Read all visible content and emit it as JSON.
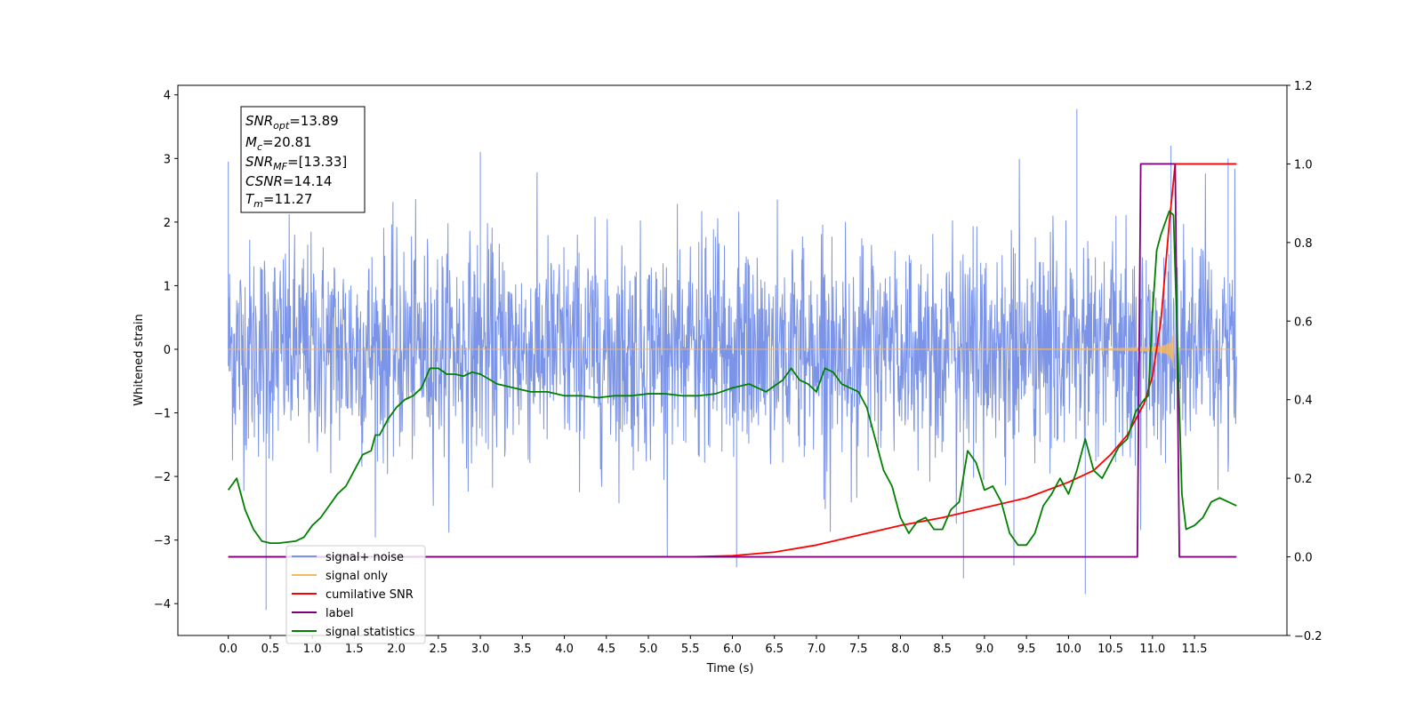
{
  "chart_data": {
    "type": "line",
    "xlabel": "Time (s)",
    "ylabel": "Whitened strain",
    "xlim": [
      -0.6,
      12.6
    ],
    "ylim": [
      -4.5,
      4.15
    ],
    "y2lim": [
      -0.2,
      1.2
    ],
    "xticks": [
      "0.0",
      "0.5",
      "1.0",
      "1.5",
      "2.0",
      "2.5",
      "3.0",
      "3.5",
      "4.0",
      "4.5",
      "5.0",
      "5.5",
      "6.0",
      "6.5",
      "7.0",
      "7.5",
      "8.0",
      "8.5",
      "9.0",
      "9.5",
      "10.0",
      "10.5",
      "11.0",
      "11.5"
    ],
    "yticks": [
      "4",
      "3",
      "2",
      "1",
      "0",
      "−1",
      "−2",
      "−3",
      "−4"
    ],
    "y2ticks": [
      "1.2",
      "1.0",
      "0.8",
      "0.6",
      "0.4",
      "0.2",
      "0.0",
      "−0.2"
    ],
    "grid": false,
    "legend_position": "lower-left",
    "colors": {
      "signal_noise": "#7b94e8",
      "signal_only": "#f5b860",
      "cumulative_snr": "#ff0000",
      "label": "#800080",
      "signal_statistics": "#008000"
    },
    "annotation": {
      "snr_opt": {
        "name": "SNR",
        "sub": "opt",
        "value": "=13.89"
      },
      "mc": {
        "name": "M",
        "sub": "c",
        "value": "=20.81"
      },
      "snr_mf": {
        "name": "SNR",
        "sub": "MF",
        "value": "=[13.33]"
      },
      "csnr": {
        "name": "CSNR",
        "value": "=14.14"
      },
      "tm": {
        "name": "T",
        "sub": "m",
        "value": "=11.27"
      }
    },
    "series": [
      {
        "name": "signal+ noise",
        "axis": "left",
        "style": "dense noisy trace, typical amplitude about ±1.5, extremes near +3.8 and −4.1",
        "t_range": [
          0.0,
          12.0
        ]
      },
      {
        "name": "signal only",
        "axis": "left",
        "style": "chirp, amplitude grows to about 1.1 near t=11.1 then stops at t=11.27",
        "t_range": [
          0.0,
          12.0
        ]
      },
      {
        "name": "cumilative SNR",
        "axis": "right",
        "x": [
          0.0,
          5.5,
          6.0,
          6.5,
          7.0,
          7.5,
          8.0,
          8.5,
          9.0,
          9.5,
          10.0,
          10.3,
          10.5,
          10.7,
          10.9,
          11.0,
          11.1,
          11.2,
          11.27,
          12.0
        ],
        "y": [
          0.0,
          0.0,
          0.003,
          0.012,
          0.03,
          0.055,
          0.08,
          0.1,
          0.125,
          0.15,
          0.19,
          0.22,
          0.26,
          0.31,
          0.39,
          0.46,
          0.6,
          0.85,
          1.0,
          1.0
        ]
      },
      {
        "name": "label",
        "axis": "right",
        "x": [
          0.0,
          10.82,
          10.86,
          11.27,
          11.32,
          12.0
        ],
        "y": [
          0.0,
          0.0,
          1.0,
          1.0,
          0.0,
          0.0
        ]
      },
      {
        "name": "signal statistics",
        "axis": "right",
        "x": [
          0.0,
          0.1,
          0.2,
          0.3,
          0.4,
          0.5,
          0.6,
          0.8,
          0.9,
          1.0,
          1.1,
          1.2,
          1.3,
          1.4,
          1.5,
          1.6,
          1.7,
          1.75,
          1.8,
          1.9,
          2.0,
          2.1,
          2.2,
          2.3,
          2.4,
          2.5,
          2.6,
          2.7,
          2.8,
          2.9,
          3.0,
          3.2,
          3.4,
          3.6,
          3.8,
          4.0,
          4.2,
          4.4,
          4.6,
          4.8,
          5.0,
          5.2,
          5.4,
          5.6,
          5.8,
          6.0,
          6.2,
          6.4,
          6.6,
          6.7,
          6.8,
          6.9,
          7.0,
          7.1,
          7.2,
          7.3,
          7.4,
          7.5,
          7.6,
          7.7,
          7.8,
          7.9,
          8.0,
          8.1,
          8.2,
          8.3,
          8.4,
          8.5,
          8.6,
          8.7,
          8.8,
          8.9,
          9.0,
          9.1,
          9.2,
          9.3,
          9.4,
          9.5,
          9.6,
          9.7,
          9.8,
          9.9,
          10.0,
          10.1,
          10.2,
          10.3,
          10.4,
          10.5,
          10.6,
          10.7,
          10.8,
          10.9,
          10.95,
          11.0,
          11.05,
          11.1,
          11.2,
          11.25,
          11.3,
          11.35,
          11.4,
          11.5,
          11.6,
          11.7,
          11.8,
          11.9,
          12.0
        ],
        "y": [
          0.17,
          0.2,
          0.12,
          0.07,
          0.04,
          0.035,
          0.035,
          0.04,
          0.05,
          0.08,
          0.1,
          0.13,
          0.16,
          0.18,
          0.22,
          0.26,
          0.27,
          0.31,
          0.31,
          0.35,
          0.38,
          0.4,
          0.41,
          0.43,
          0.48,
          0.48,
          0.465,
          0.465,
          0.46,
          0.47,
          0.465,
          0.44,
          0.43,
          0.42,
          0.42,
          0.41,
          0.41,
          0.405,
          0.41,
          0.41,
          0.415,
          0.415,
          0.41,
          0.41,
          0.415,
          0.43,
          0.44,
          0.42,
          0.45,
          0.48,
          0.45,
          0.44,
          0.42,
          0.48,
          0.47,
          0.44,
          0.43,
          0.42,
          0.38,
          0.3,
          0.22,
          0.18,
          0.1,
          0.06,
          0.09,
          0.1,
          0.07,
          0.07,
          0.12,
          0.14,
          0.27,
          0.24,
          0.17,
          0.18,
          0.14,
          0.06,
          0.03,
          0.03,
          0.06,
          0.13,
          0.16,
          0.2,
          0.16,
          0.22,
          0.3,
          0.22,
          0.2,
          0.24,
          0.28,
          0.3,
          0.37,
          0.4,
          0.41,
          0.62,
          0.78,
          0.82,
          0.88,
          0.87,
          0.52,
          0.16,
          0.07,
          0.08,
          0.1,
          0.14,
          0.15,
          0.14,
          0.13
        ]
      }
    ]
  }
}
